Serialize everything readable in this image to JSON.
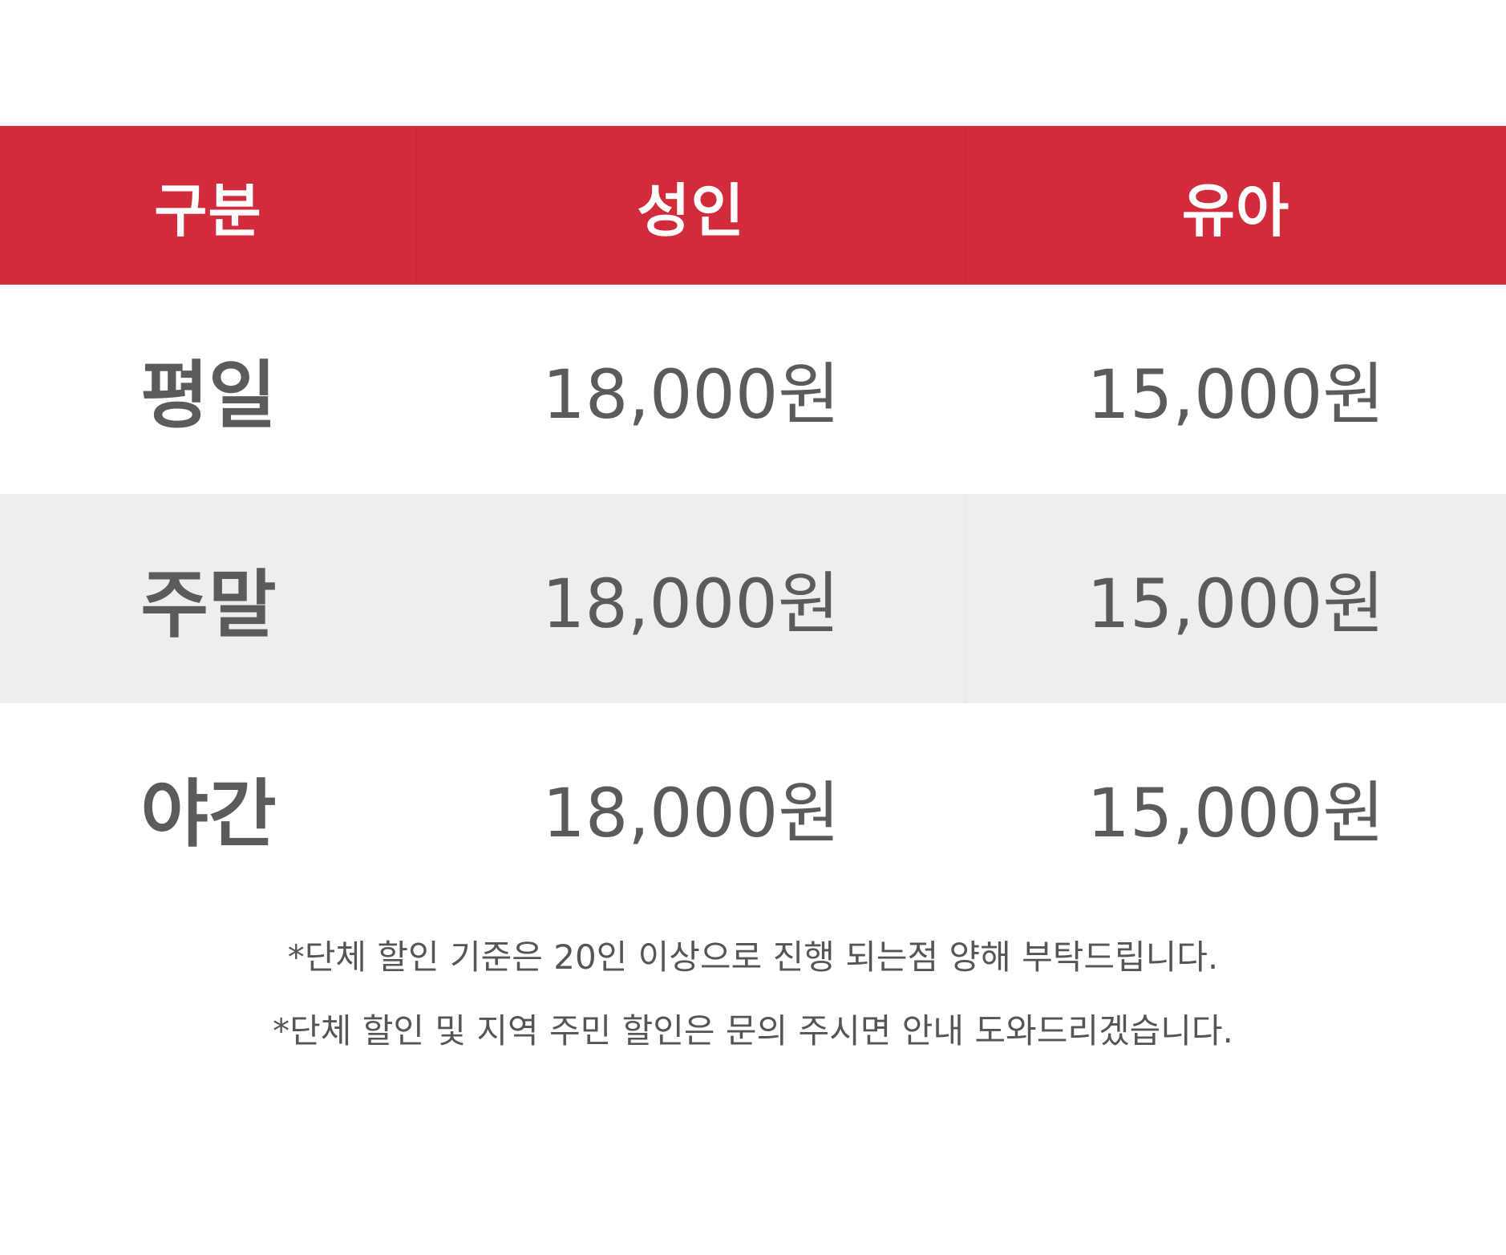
{
  "table": {
    "headers": [
      "구분",
      "성인",
      "유아"
    ],
    "rows": [
      {
        "label": "평일",
        "adult": "18,000원",
        "child": "15,000원"
      },
      {
        "label": "주말",
        "adult": "18,000원",
        "child": "15,000원"
      },
      {
        "label": "야간",
        "adult": "18,000원",
        "child": "15,000원"
      }
    ]
  },
  "notes": [
    "*단체 할인 기준은 20인 이상으로 진행 되는점 양해 부탁드립니다.",
    "*단체 할인 및 지역 주민 할인은 문의 주시면 안내 도와드리겠습니다."
  ],
  "colors": {
    "header_bg": "#d22b3c",
    "header_text": "#ffffff",
    "body_text": "#5b5b5b",
    "alt_row_bg": "#eeeeee"
  }
}
